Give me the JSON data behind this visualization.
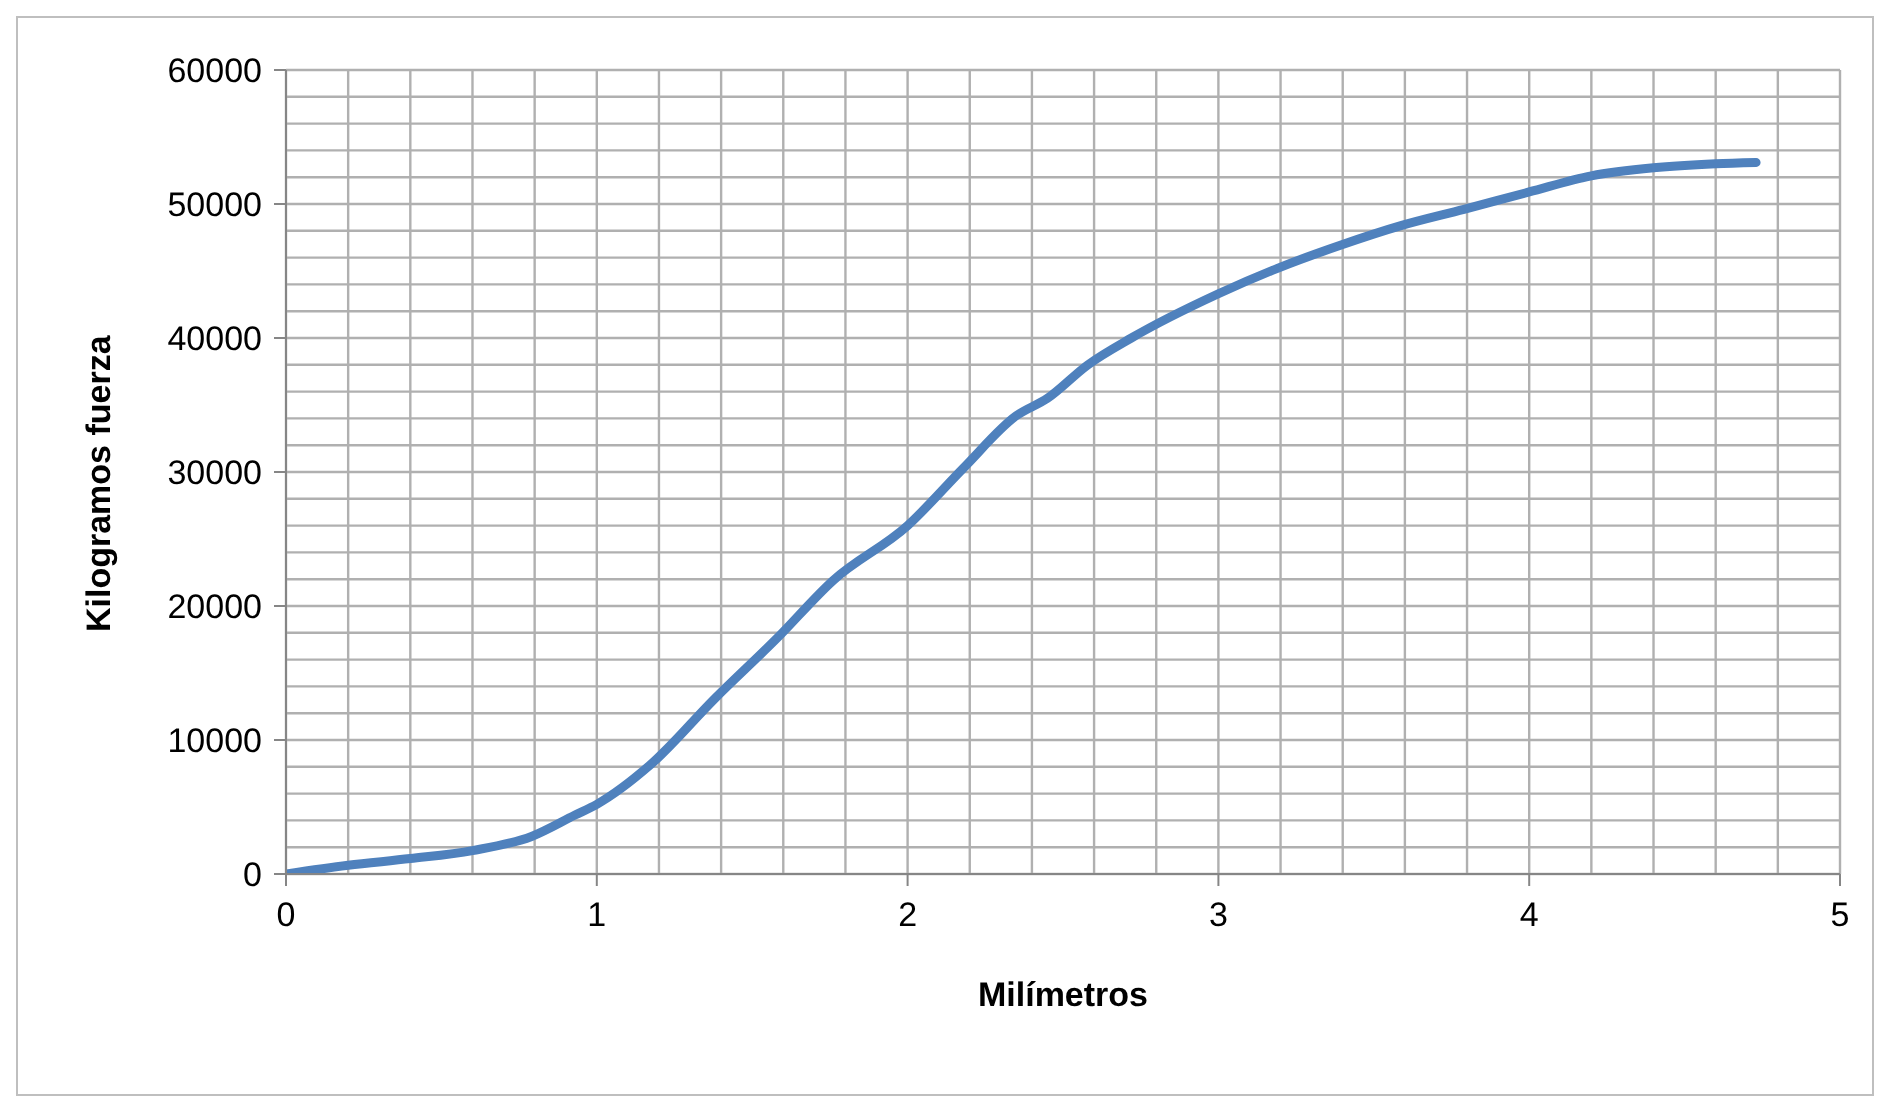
{
  "chart_data": {
    "type": "line",
    "xlabel": "Milímetros",
    "ylabel": "Kilogramos fuerza",
    "x": [
      0,
      0.2,
      0.4,
      0.6,
      0.79,
      0.93,
      1.0,
      1.17,
      1.38,
      1.58,
      1.76,
      2.0,
      2.18,
      2.35,
      2.45,
      2.58,
      2.72,
      3.0,
      3.19,
      3.39,
      3.59,
      3.79,
      4.0,
      4.2,
      4.4,
      4.6,
      4.73
    ],
    "series": [
      {
        "color": "#4f81bd",
        "values": [
          0,
          650,
          1150,
          1750,
          2800,
          4400,
          5200,
          8100,
          13100,
          17600,
          21900,
          26000,
          30300,
          34200,
          35500,
          38000,
          40000,
          43300,
          45200,
          46900,
          48400,
          49600,
          50900,
          52100,
          52700,
          53000,
          53100
        ]
      }
    ],
    "xlim": [
      0,
      5
    ],
    "ylim": [
      0,
      60000
    ],
    "xticks": [
      0,
      {
        "value": 0.2,
        "label": null
      },
      {
        "value": 0.4,
        "label": null
      },
      {
        "value": 0.6,
        "label": null
      },
      {
        "value": 0.8,
        "label": null
      },
      1,
      {
        "value": 1.2,
        "label": null
      },
      {
        "value": 1.4,
        "label": null
      },
      {
        "value": 1.6,
        "label": null
      },
      {
        "value": 1.8,
        "label": null
      },
      2,
      {
        "value": 2.2,
        "label": null
      },
      {
        "value": 2.4,
        "label": null
      },
      {
        "value": 2.6,
        "label": null
      },
      {
        "value": 2.8,
        "label": null
      },
      3,
      {
        "value": 3.2,
        "label": null
      },
      {
        "value": 3.4,
        "label": null
      },
      {
        "value": 3.6,
        "label": null
      },
      {
        "value": 3.8,
        "label": null
      },
      4,
      {
        "value": 4.2,
        "label": null
      },
      {
        "value": 4.4,
        "label": null
      },
      {
        "value": 4.6,
        "label": null
      },
      {
        "value": 4.8,
        "label": null
      },
      5
    ],
    "yticks": [
      0,
      {
        "value": 2000,
        "label": null
      },
      {
        "value": 4000,
        "label": null
      },
      {
        "value": 6000,
        "label": null
      },
      {
        "value": 8000,
        "label": null
      },
      10000,
      {
        "value": 12000,
        "label": null
      },
      {
        "value": 14000,
        "label": null
      },
      {
        "value": 16000,
        "label": null
      },
      {
        "value": 18000,
        "label": null
      },
      20000,
      {
        "value": 22000,
        "label": null
      },
      {
        "value": 24000,
        "label": null
      },
      {
        "value": 26000,
        "label": null
      },
      {
        "value": 28000,
        "label": null
      },
      30000,
      {
        "value": 32000,
        "label": null
      },
      {
        "value": 34000,
        "label": null
      },
      {
        "value": 36000,
        "label": null
      },
      {
        "value": 38000,
        "label": null
      },
      40000,
      {
        "value": 42000,
        "label": null
      },
      {
        "value": 44000,
        "label": null
      },
      {
        "value": 46000,
        "label": null
      },
      {
        "value": 48000,
        "label": null
      },
      50000,
      {
        "value": 52000,
        "label": null
      },
      {
        "value": 54000,
        "label": null
      },
      {
        "value": 56000,
        "label": null
      },
      {
        "value": 58000,
        "label": null
      },
      60000
    ],
    "grid": true,
    "legend": false,
    "marker": "none",
    "line_style": "solid"
  }
}
